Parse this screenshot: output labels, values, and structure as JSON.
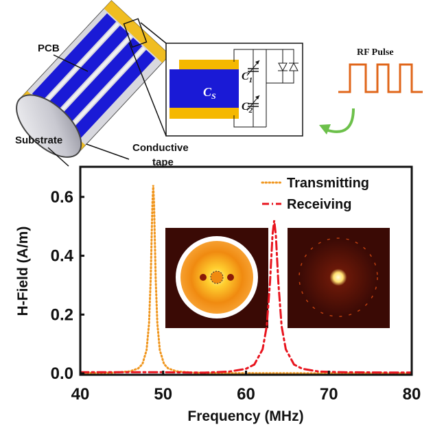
{
  "diagram": {
    "pcb_label": "PCB",
    "substrate_label": "Substrate",
    "tape_label_line1": "Conductive",
    "tape_label_line2": "tape",
    "cs_label": "C",
    "cs_sub": "S",
    "c1_label": "C",
    "c1_sub": "1",
    "c2_label": "C",
    "c2_sub": "2",
    "rf_pulse_label": "RF Pulse",
    "colors": {
      "pcb": "#1a1ad6",
      "tape": "#f5b800",
      "pulse": "#e0661a",
      "arrow": "#6cc04a"
    }
  },
  "chart_data": {
    "type": "line",
    "xlabel": "Frequency (MHz)",
    "ylabel": "H-Field (A/m)",
    "xlim": [
      40,
      80
    ],
    "ylim": [
      0,
      0.7
    ],
    "xticks": [
      "40",
      "50",
      "60",
      "70",
      "80"
    ],
    "xtick_values": [
      40,
      50,
      60,
      70,
      80
    ],
    "yticks": [
      "0.0",
      "0.2",
      "0.4",
      "0.6"
    ],
    "ytick_values": [
      0,
      0.2,
      0.4,
      0.6
    ],
    "grid": false,
    "legend_position": "top-right",
    "series": [
      {
        "name": "Transmitting",
        "style": "dotted",
        "color": "#f0961e",
        "x": [
          40,
          44,
          46,
          47,
          47.5,
          48,
          48.3,
          48.5,
          48.7,
          48.8,
          48.9,
          49.1,
          49.3,
          49.6,
          50.1,
          50.6,
          51.6,
          53.6,
          57.6,
          65,
          80
        ],
        "y": [
          0.001,
          0.0025,
          0.007,
          0.017,
          0.032,
          0.079,
          0.17,
          0.32,
          0.576,
          0.64,
          0.576,
          0.32,
          0.17,
          0.079,
          0.032,
          0.017,
          0.007,
          0.0025,
          0.001,
          0.0005,
          0.0002
        ]
      },
      {
        "name": "Receiving",
        "style": "dash-dot",
        "color": "#e8141e",
        "x": [
          40,
          50,
          55,
          58,
          60,
          61,
          62,
          62.5,
          62.9,
          63.2,
          63.4,
          63.6,
          63.9,
          64.3,
          64.8,
          65.8,
          66.8,
          68.8,
          71.8,
          76.8,
          80
        ],
        "y": [
          0.004,
          0.004,
          0.0026,
          0.0063,
          0.0157,
          0.03,
          0.082,
          0.16,
          0.31,
          0.47,
          0.52,
          0.47,
          0.31,
          0.16,
          0.082,
          0.03,
          0.0157,
          0.0063,
          0.004,
          0.003,
          0.003
        ]
      }
    ]
  }
}
